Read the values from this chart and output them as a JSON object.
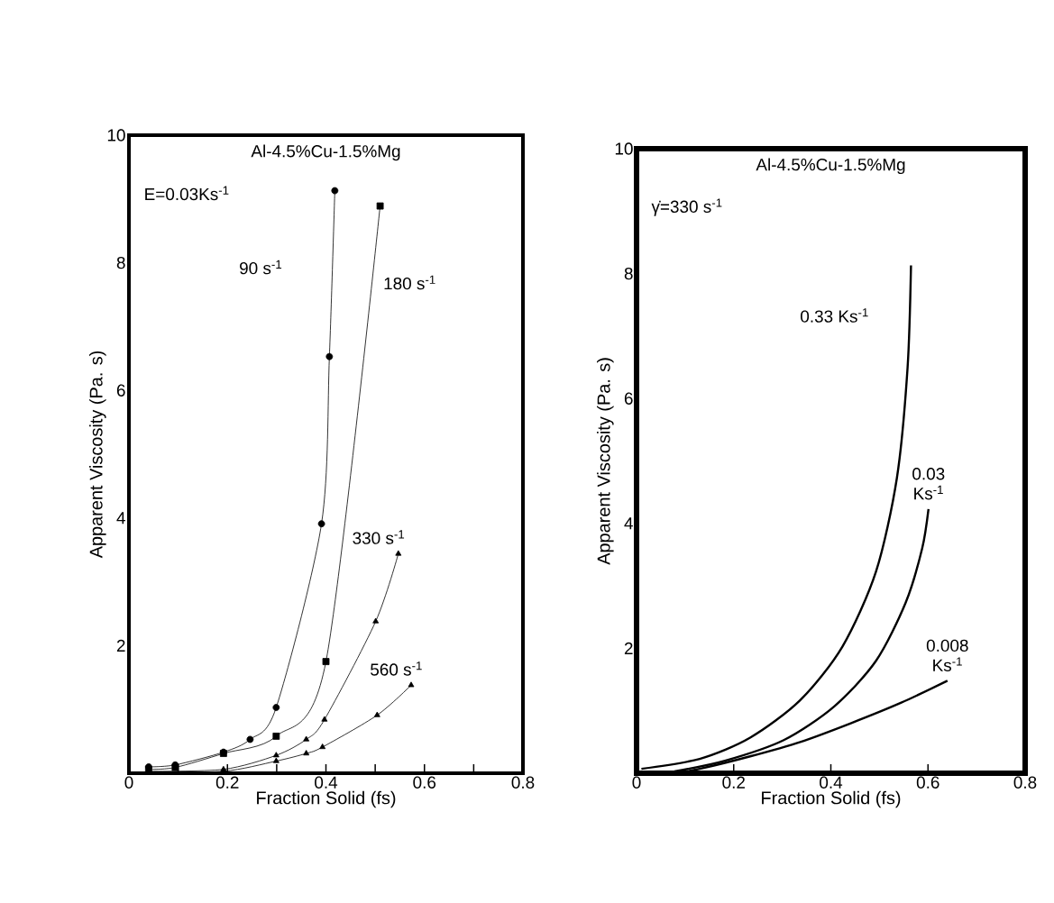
{
  "chart_data": [
    {
      "type": "line",
      "title": "Al-4.5%Cu-1.5%Mg",
      "subtitle": "E=0.03Ks$^{-1}$",
      "xlabel": "Fraction Solid (fs)",
      "ylabel": "Apparent Viscosity (Pa. s)",
      "xlim": [
        0,
        0.8
      ],
      "ylim": [
        0,
        10
      ],
      "xticks": [
        0,
        {
          "value": 0.1,
          "label": null
        },
        0.2,
        {
          "value": 0.3,
          "label": null
        },
        0.4,
        {
          "value": 0.5,
          "label": null
        },
        0.6,
        {
          "value": 0.7,
          "label": null
        },
        0.8
      ],
      "yticks": [
        2,
        4,
        6,
        8,
        10
      ],
      "series": [
        {
          "name": "90 s$^{-1}$",
          "color": "#000000",
          "marker": "circle",
          "x": [
            0.04,
            0.094,
            0.192,
            0.246,
            0.299,
            0.391,
            0.407,
            0.418
          ],
          "values": [
            0.1,
            0.13,
            0.33,
            0.53,
            1.03,
            3.91,
            6.53,
            9.13
          ]
        },
        {
          "name": "180 s$^{-1}$",
          "color": "#000000",
          "marker": "square",
          "x": [
            0.04,
            0.094,
            0.192,
            0.299,
            0.4,
            0.51
          ],
          "values": [
            0.06,
            0.09,
            0.31,
            0.58,
            1.75,
            8.89
          ]
        },
        {
          "name": "330 s$^{-1}$",
          "color": "#000000",
          "marker": "triangle",
          "x": [
            0.04,
            0.192,
            0.299,
            0.36,
            0.397,
            0.501,
            0.547
          ],
          "values": [
            0.03,
            0.06,
            0.28,
            0.53,
            0.84,
            2.38,
            3.44
          ]
        },
        {
          "name": "560 s$^{-1}$",
          "color": "#000000",
          "marker": "triangle",
          "x": [
            0.04,
            0.192,
            0.299,
            0.36,
            0.393,
            0.504,
            0.573
          ],
          "values": [
            0.02,
            0.03,
            0.19,
            0.31,
            0.41,
            0.91,
            1.38
          ]
        }
      ]
    },
    {
      "type": "line",
      "title": "Al-4.5%Cu-1.5%Mg",
      "subtitle": "γ̇=330 s$^{-1}$",
      "xlabel": "Fraction Solid (fs)",
      "ylabel": "Apparent Viscosity (Pa. s)",
      "xlim": [
        0,
        0.8
      ],
      "ylim": [
        0,
        10
      ],
      "xticks": [
        0,
        0.2,
        0.4,
        0.6,
        0.8
      ],
      "yticks": [
        2,
        4,
        6,
        8,
        10
      ],
      "series": [
        {
          "name": "0.33 Ks$^{-1}$",
          "color": "#000000",
          "x": [
            0.01,
            0.13,
            0.234,
            0.337,
            0.424,
            0.493,
            0.536,
            0.558,
            0.565
          ],
          "values": [
            0.07,
            0.23,
            0.57,
            1.17,
            2.03,
            3.23,
            4.73,
            6.5,
            8.13
          ]
        },
        {
          "name": "0.03 Ks$^{-1}$",
          "color": "#000000",
          "x": [
            0.078,
            0.182,
            0.303,
            0.407,
            0.493,
            0.554,
            0.588,
            0.601
          ],
          "values": [
            0.03,
            0.2,
            0.53,
            1.07,
            1.8,
            2.73,
            3.6,
            4.23
          ]
        },
        {
          "name": "0.008 Ks$^{-1}$",
          "color": "#000000",
          "x": [
            0.078,
            0.13,
            0.234,
            0.337,
            0.441,
            0.545,
            0.64
          ],
          "values": [
            0.0,
            0.07,
            0.27,
            0.5,
            0.8,
            1.13,
            1.48
          ]
        }
      ]
    }
  ]
}
